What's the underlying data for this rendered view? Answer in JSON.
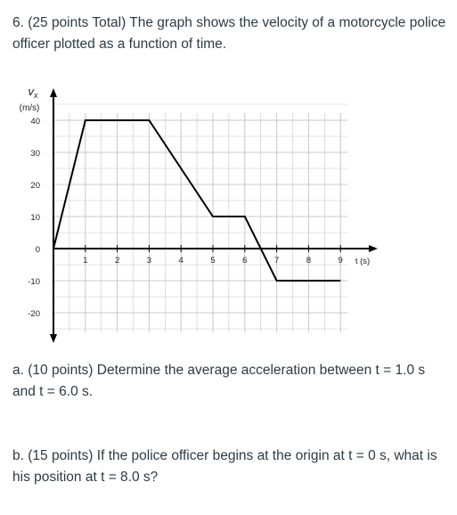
{
  "question": {
    "header": "6. (25 points Total) The graph shows the velocity of a motorcycle police officer plotted as a function of time.",
    "part_a": "a. (10 points) Determine the average acceleration between t = 1.0 s and t = 6.0 s.",
    "part_b": "b. (15 points) If the police officer begins at the origin at t = 0 s, what is his position at t = 8.0 s?"
  },
  "chart_data": {
    "type": "line",
    "title": "",
    "xlabel": "t (s)",
    "ylabel_symbol": "v",
    "ylabel_subscript": "x",
    "ylabel_units": "(m/s)",
    "x_ticks": [
      "1",
      "2",
      "3",
      "4",
      "5",
      "6",
      "7",
      "8",
      "9"
    ],
    "y_ticks": [
      "40",
      "30",
      "20",
      "10",
      "0",
      "-10",
      "-20"
    ],
    "xlim": [
      0,
      9
    ],
    "ylim": [
      -20,
      40
    ],
    "grid": true,
    "legend": "none",
    "series": [
      {
        "x": [
          0,
          1,
          3,
          5,
          6,
          7,
          9
        ],
        "y": [
          0,
          40,
          40,
          10,
          10,
          -10,
          -10
        ]
      }
    ],
    "colors": {
      "line": "#000000",
      "grid": "#c8c8c8",
      "axes": "#000000"
    }
  }
}
